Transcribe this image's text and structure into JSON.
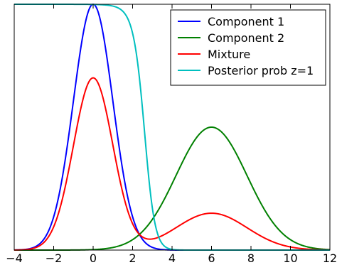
{
  "chart_data": {
    "type": "line",
    "xlim": [
      -4,
      12
    ],
    "ylim": [
      0,
      1
    ],
    "x_ticks": [
      -4,
      -2,
      0,
      2,
      4,
      6,
      8,
      10,
      12
    ],
    "x_tick_labels": [
      "−4",
      "−2",
      "0",
      "2",
      "4",
      "6",
      "8",
      "10",
      "12"
    ],
    "y_ticks": [],
    "legend_position": "top-right",
    "grid": false,
    "series": [
      {
        "name": "Component 1",
        "color": "#0000ff",
        "function": "gaussian",
        "mean": 0,
        "sd": 1,
        "peak": 1.0
      },
      {
        "name": "Component 2",
        "color": "#008000",
        "function": "gaussian",
        "mean": 6,
        "sd": 1.8,
        "peak": 0.5
      },
      {
        "name": "Mixture",
        "color": "#ff0000",
        "function": "mixture",
        "weight_1": 0.7,
        "weight_2": 0.3
      },
      {
        "name": "Posterior prob z=1",
        "color": "#00bfbf",
        "function": "posterior",
        "weight_1": 0.7,
        "weight_2": 0.3
      }
    ]
  }
}
